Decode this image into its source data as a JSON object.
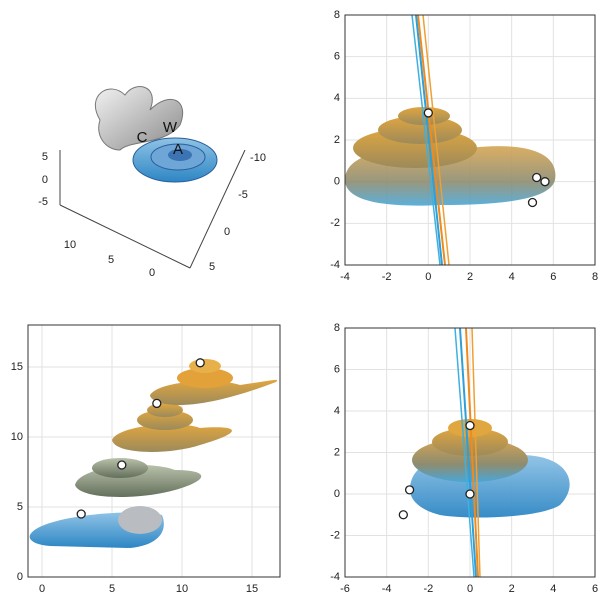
{
  "chart_data": [
    {
      "type": "3d",
      "labels": [
        "C",
        "W",
        "A"
      ],
      "xticks": [
        10,
        5,
        0
      ],
      "yticks": [
        -10,
        -5,
        0,
        5
      ],
      "zticks": [
        5,
        0,
        -5
      ]
    },
    {
      "type": "scatter",
      "xlim": [
        -4,
        8
      ],
      "ylim": [
        -4,
        8
      ],
      "xticks": [
        -4,
        -2,
        0,
        2,
        4,
        6,
        8
      ],
      "yticks": [
        -4,
        -2,
        0,
        2,
        4,
        6,
        8
      ],
      "grid": true,
      "x": [
        0,
        5.2,
        5.6,
        5
      ],
      "y": [
        3.3,
        0.2,
        0,
        -1
      ]
    },
    {
      "type": "scatter",
      "xlim": [
        -1,
        17
      ],
      "ylim": [
        0,
        18
      ],
      "xticks": [
        0,
        5,
        10,
        15
      ],
      "yticks": [
        0,
        5,
        10,
        15
      ],
      "grid": true,
      "x": [
        2.8,
        5.7,
        8.2,
        11.3
      ],
      "y": [
        4.5,
        8,
        12.4,
        15.3
      ]
    },
    {
      "type": "scatter",
      "xlim": [
        -6,
        6
      ],
      "ylim": [
        -4,
        8
      ],
      "xticks": [
        -6,
        -4,
        -2,
        0,
        2,
        4,
        6
      ],
      "yticks": [
        -4,
        -2,
        0,
        2,
        4,
        6,
        8
      ],
      "grid": true,
      "x": [
        0,
        -2.9,
        0,
        -3.2
      ],
      "y": [
        3.3,
        0.2,
        0,
        -1
      ]
    }
  ]
}
